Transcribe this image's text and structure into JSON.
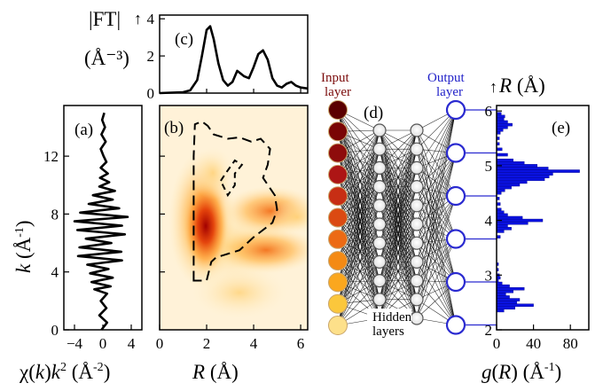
{
  "chart_data": [
    {
      "panel": "(a)",
      "type": "line",
      "orientation": "vertical",
      "xlabel": "χ(k)k² (Å⁻²)",
      "ylabel": "k (Å⁻¹)",
      "xlim": [
        -5.5,
        5.5
      ],
      "ylim": [
        0,
        15.5
      ],
      "xticks": [
        -4,
        0,
        4
      ],
      "yticks": [
        0,
        4,
        8,
        12
      ],
      "series": [
        {
          "k": [
            0,
            0.5,
            1.0,
            1.5,
            2.0,
            2.5,
            2.8,
            3.0,
            3.3,
            3.6,
            3.9,
            4.2,
            4.5,
            4.8,
            5.1,
            5.4,
            5.7,
            6.0,
            6.3,
            6.6,
            6.9,
            7.2,
            7.5,
            7.8,
            8.1,
            8.4,
            8.7,
            9.0,
            9.3,
            9.6,
            9.9,
            10.2,
            10.5,
            10.8,
            11.2,
            11.6,
            12.0,
            12.5,
            13.0,
            13.5,
            14.0,
            14.5,
            15.0
          ],
          "chi": [
            -0.2,
            0.6,
            -0.5,
            0.5,
            -0.3,
            0.6,
            -1.2,
            1.1,
            -1.6,
            1.4,
            -1.8,
            0.8,
            -2.2,
            2.7,
            -3.5,
            2.6,
            -3.3,
            1.2,
            -2.4,
            3.1,
            -3.6,
            2.7,
            -4.0,
            3.5,
            -3.2,
            2.3,
            -2.0,
            1.4,
            -1.4,
            1.7,
            -0.5,
            0.9,
            -0.4,
            0.7,
            -0.3,
            0.5,
            0.1,
            -0.3,
            0.4,
            -0.2,
            0.3,
            -0.1,
            0.2
          ]
        }
      ]
    },
    {
      "panel": "(b)",
      "type": "heatmap",
      "xlabel": "R (Å)",
      "xlim": [
        0,
        6.3
      ],
      "ylim": [
        0,
        15.5
      ],
      "xticks": [
        0,
        2,
        4,
        6
      ],
      "yticks": [
        4,
        8,
        12
      ],
      "contour_dashed": [
        [
          1.45,
          3.4
        ],
        [
          1.45,
          12
        ],
        [
          1.5,
          14.2
        ],
        [
          1.8,
          14.4
        ],
        [
          2.05,
          14.1
        ],
        [
          2.3,
          13.5
        ],
        [
          2.9,
          13.2
        ],
        [
          3.4,
          13.3
        ],
        [
          3.9,
          13.0
        ],
        [
          4.3,
          13.2
        ],
        [
          4.7,
          12.5
        ],
        [
          4.6,
          11.4
        ],
        [
          4.4,
          10.5
        ],
        [
          4.9,
          9.3
        ],
        [
          5.0,
          8.3
        ],
        [
          4.8,
          7.4
        ],
        [
          4.0,
          6.4
        ],
        [
          3.4,
          5.5
        ],
        [
          2.4,
          5.0
        ],
        [
          2.2,
          4.7
        ],
        [
          2.0,
          3.4
        ],
        [
          1.45,
          3.4
        ]
      ],
      "contour_inner": [
        [
          2.6,
          10.3
        ],
        [
          2.85,
          10.9
        ],
        [
          3.2,
          11.7
        ],
        [
          3.5,
          11.4
        ],
        [
          3.2,
          10.8
        ],
        [
          3.2,
          10.0
        ],
        [
          2.9,
          9.3
        ],
        [
          2.6,
          10.3
        ]
      ]
    },
    {
      "panel": "(c)",
      "type": "line",
      "ylabel": "|FT|",
      "ylabel_unit": "(Å⁻³)",
      "xlim": [
        0,
        6.3
      ],
      "ylim": [
        0,
        4.2
      ],
      "yticks": [
        0,
        2,
        4
      ],
      "series": [
        {
          "x": [
            0,
            1.0,
            1.3,
            1.6,
            1.8,
            2.0,
            2.15,
            2.3,
            2.5,
            2.7,
            2.9,
            3.1,
            3.3,
            3.6,
            3.8,
            4.0,
            4.2,
            4.4,
            4.6,
            4.8,
            5.0,
            5.2,
            5.4,
            5.6,
            5.8,
            6.0,
            6.3
          ],
          "y": [
            0,
            0.05,
            0.15,
            0.7,
            2.0,
            3.4,
            3.6,
            2.9,
            1.6,
            0.7,
            0.4,
            0.6,
            1.2,
            0.9,
            0.8,
            1.4,
            2.1,
            2.3,
            1.8,
            0.8,
            0.4,
            0.3,
            0.5,
            0.6,
            0.4,
            0.3,
            0.25
          ]
        }
      ]
    },
    {
      "panel": "(d)",
      "type": "diagram",
      "input_label": [
        "Input",
        "layer"
      ],
      "output_label": [
        "Output",
        "layer"
      ],
      "hidden_label": [
        "Hidden",
        "layers"
      ],
      "input_colors": [
        "#5b0000",
        "#7a0505",
        "#8e0c0c",
        "#ad1515",
        "#c72e14",
        "#db4a12",
        "#ec6a14",
        "#f48a14",
        "#fba71e",
        "#fbc73c",
        "#fde08a"
      ],
      "hidden_nodes_per_layer": 11,
      "output_nodes": 6
    },
    {
      "panel": "(e)",
      "type": "bar",
      "orientation": "horizontal",
      "xlabel": "g(R) (Å⁻¹)",
      "ylabel": "R (Å)",
      "xlim": [
        0,
        100
      ],
      "ylim": [
        2.0,
        6.1
      ],
      "xticks": [
        0,
        40,
        80
      ],
      "yticks": [
        2,
        3,
        4,
        5,
        6
      ],
      "bin_width": 0.05,
      "R": [
        2.35,
        2.4,
        2.45,
        2.5,
        2.55,
        2.6,
        2.65,
        2.7,
        2.75,
        2.8,
        2.85,
        2.9,
        2.95,
        3.0,
        3.1,
        3.2,
        3.7,
        3.8,
        3.85,
        3.9,
        3.95,
        4.0,
        4.05,
        4.1,
        4.15,
        4.2,
        4.3,
        4.4,
        4.5,
        4.55,
        4.6,
        4.65,
        4.7,
        4.75,
        4.8,
        4.85,
        4.9,
        4.95,
        5.0,
        5.05,
        5.1,
        5.2,
        5.3,
        5.4,
        5.5,
        5.6,
        5.65,
        5.7,
        5.75,
        5.8,
        5.85,
        5.9,
        5.95
      ],
      "g": [
        8,
        20,
        40,
        22,
        25,
        14,
        10,
        18,
        30,
        14,
        6,
        2,
        4,
        3,
        2,
        2,
        4,
        8,
        16,
        12,
        34,
        50,
        28,
        12,
        8,
        5,
        4,
        3,
        5,
        9,
        16,
        25,
        33,
        52,
        57,
        61,
        90,
        56,
        44,
        30,
        18,
        12,
        6,
        3,
        3,
        4,
        7,
        12,
        17,
        12,
        8,
        9,
        5
      ]
    }
  ]
}
